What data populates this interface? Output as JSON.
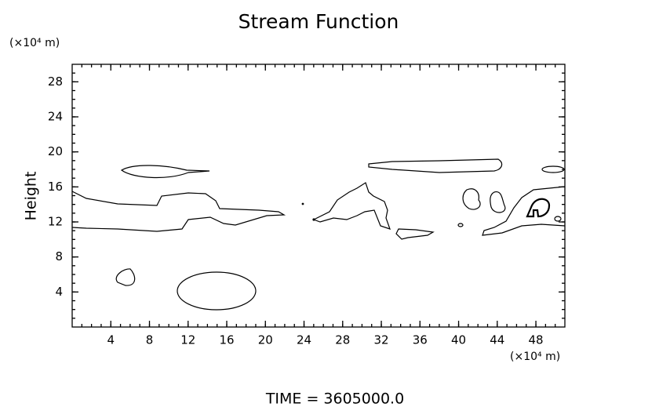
{
  "chart_data": {
    "type": "contour",
    "title": "Stream Function",
    "y_unit_label": "(×10⁴ m)",
    "x_unit_label": "(×10⁴ m)",
    "y_label": "Height",
    "footer": "TIME  =  3605000.0",
    "xlim": [
      0,
      51
    ],
    "ylim": [
      0,
      30
    ],
    "xticks": [
      4,
      8,
      12,
      16,
      20,
      24,
      28,
      32,
      36,
      40,
      44,
      48
    ],
    "yticks": [
      4,
      8,
      12,
      16,
      20,
      24,
      28
    ]
  }
}
